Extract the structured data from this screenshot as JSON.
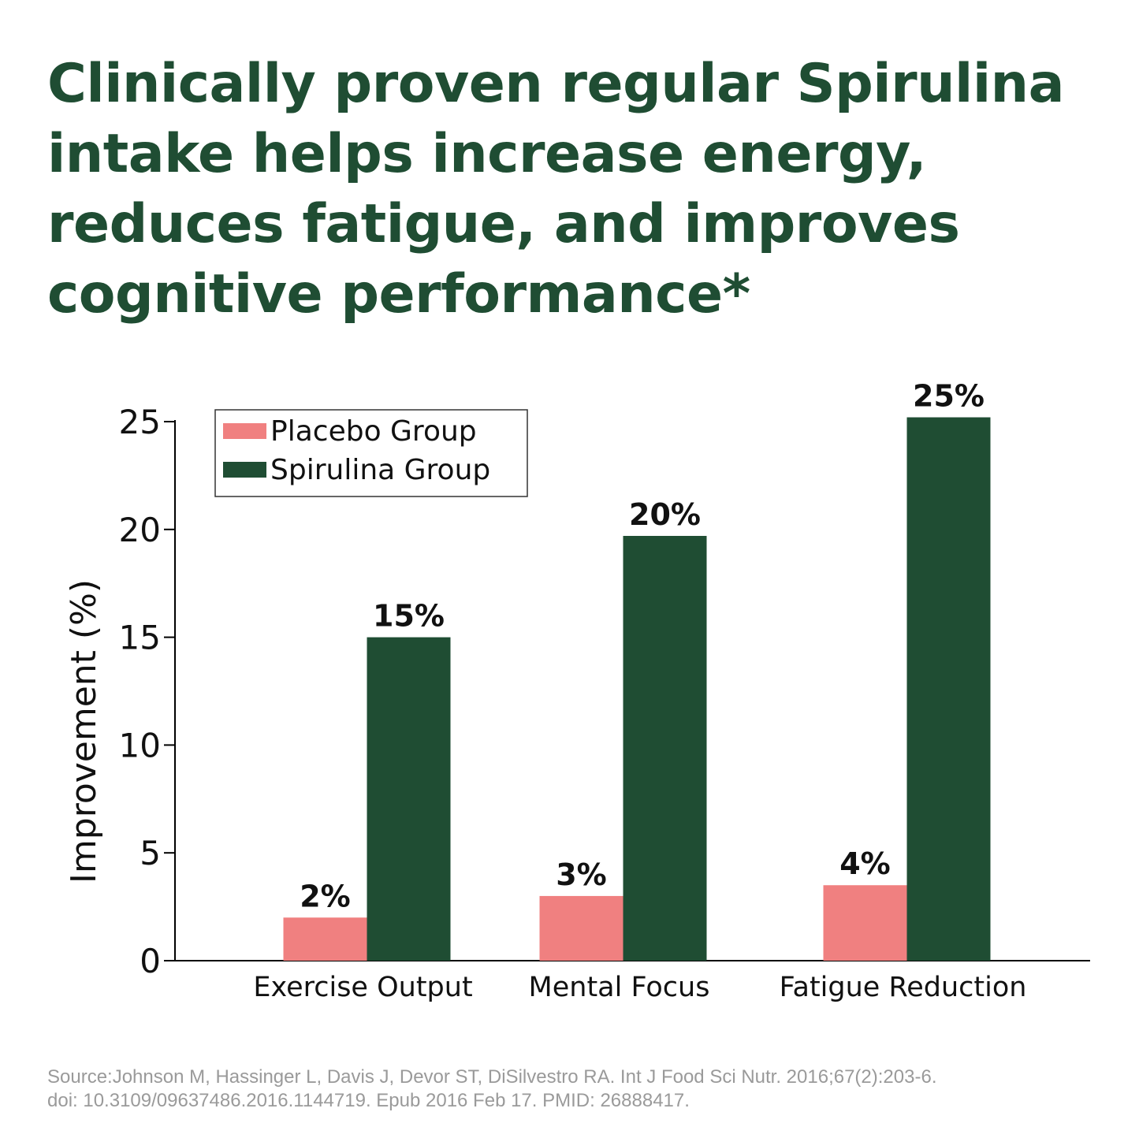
{
  "headline": {
    "line1": "Clinically proven regular Spirulina",
    "line2": "intake helps increase energy,",
    "line3": "reduces fatigue, and improves",
    "line4": "cognitive performance*"
  },
  "colors": {
    "headline": "#1f4d33",
    "placebo": "#f08080",
    "spirulina": "#1f4d33",
    "axis": "#000000",
    "source": "#9a9a9a"
  },
  "chart_data": {
    "type": "bar",
    "title": "",
    "xlabel": "",
    "ylabel": "Improvement (%)",
    "ylim": [
      0,
      25
    ],
    "yticks": [
      0,
      5,
      10,
      15,
      20,
      25
    ],
    "categories": [
      "Exercise Output",
      "Mental Focus",
      "Fatigue Reduction"
    ],
    "series": [
      {
        "name": "Placebo Group",
        "values": [
          2,
          3,
          3.5
        ],
        "labels": [
          "2%",
          "3%",
          "4%"
        ]
      },
      {
        "name": "Spirulina Group",
        "values": [
          15,
          19.7,
          25.2
        ],
        "labels": [
          "15%",
          "20%",
          "25%"
        ]
      }
    ],
    "legend": "top-left",
    "grid": false
  },
  "source": {
    "line1": "Source:Johnson M, Hassinger L, Davis J, Devor ST, DiSilvestro RA. Int J Food Sci Nutr. 2016;67(2):203-6.",
    "line2": "doi: 10.3109/09637486.2016.1144719. Epub 2016 Feb 17. PMID: 26888417."
  }
}
